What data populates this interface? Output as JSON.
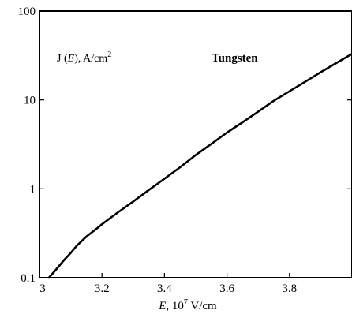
{
  "chart_data": {
    "type": "line",
    "title": "",
    "ylabel_parts": {
      "pre": "J (",
      "var": "E",
      "post": "), A/cm",
      "sup": "2"
    },
    "xlabel_parts": {
      "var": "E",
      "pre": ", 10",
      "sup": "7",
      "post": " V/cm"
    },
    "annotation": "Tungsten",
    "xlim": [
      3.0,
      4.0
    ],
    "ylim": [
      0.1,
      100
    ],
    "y_scale": "log",
    "x_ticks": [
      3,
      3.2,
      3.4,
      3.6,
      3.8
    ],
    "x_tick_labels": [
      "3",
      "3.2",
      "3.4",
      "3.6",
      "3.8"
    ],
    "y_ticks": [
      0.1,
      1,
      10,
      100
    ],
    "y_tick_labels": [
      "0.1",
      "1",
      "10",
      "100"
    ],
    "grid": false,
    "series": [
      {
        "x": [
          3.03,
          3.05,
          3.08,
          3.1,
          3.12,
          3.15,
          3.18,
          3.2,
          3.25,
          3.3,
          3.35,
          3.4,
          3.45,
          3.5,
          3.55,
          3.6,
          3.65,
          3.7,
          3.75,
          3.8,
          3.85,
          3.9,
          3.95,
          4.0
        ],
        "y": [
          0.1,
          0.12,
          0.16,
          0.19,
          0.23,
          0.29,
          0.35,
          0.4,
          0.54,
          0.72,
          0.97,
          1.3,
          1.75,
          2.4,
          3.2,
          4.3,
          5.6,
          7.4,
          9.8,
          12.5,
          16,
          20.5,
          26,
          33
        ]
      }
    ]
  }
}
